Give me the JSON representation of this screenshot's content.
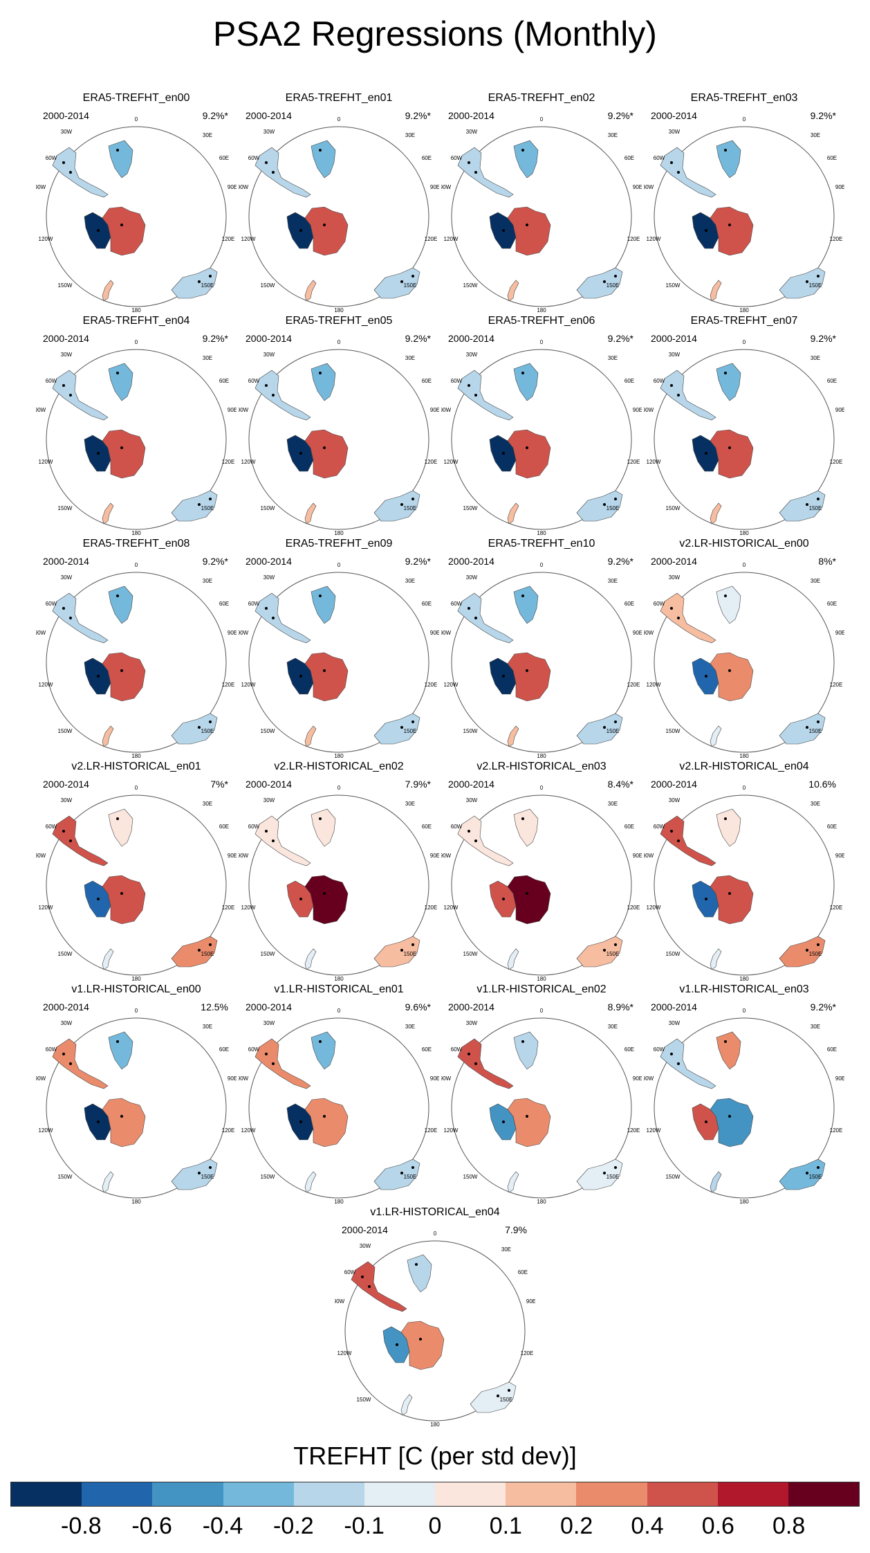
{
  "title": "PSA2 Regressions (Monthly)",
  "period": "2000-2014",
  "panels": [
    {
      "name": "ERA5-TREFHT_en00",
      "pct": "9.2%*",
      "scheme": "era5"
    },
    {
      "name": "ERA5-TREFHT_en01",
      "pct": "9.2%*",
      "scheme": "era5"
    },
    {
      "name": "ERA5-TREFHT_en02",
      "pct": "9.2%*",
      "scheme": "era5"
    },
    {
      "name": "ERA5-TREFHT_en03",
      "pct": "9.2%*",
      "scheme": "era5"
    },
    {
      "name": "ERA5-TREFHT_en04",
      "pct": "9.2%*",
      "scheme": "era5"
    },
    {
      "name": "ERA5-TREFHT_en05",
      "pct": "9.2%*",
      "scheme": "era5"
    },
    {
      "name": "ERA5-TREFHT_en06",
      "pct": "9.2%*",
      "scheme": "era5"
    },
    {
      "name": "ERA5-TREFHT_en07",
      "pct": "9.2%*",
      "scheme": "era5"
    },
    {
      "name": "ERA5-TREFHT_en08",
      "pct": "9.2%*",
      "scheme": "era5"
    },
    {
      "name": "ERA5-TREFHT_en09",
      "pct": "9.2%*",
      "scheme": "era5"
    },
    {
      "name": "ERA5-TREFHT_en10",
      "pct": "9.2%*",
      "scheme": "era5"
    },
    {
      "name": "v2.LR-HISTORICAL_en00",
      "pct": "8%*",
      "scheme": "v2a"
    },
    {
      "name": "v2.LR-HISTORICAL_en01",
      "pct": "7%*",
      "scheme": "v2b"
    },
    {
      "name": "v2.LR-HISTORICAL_en02",
      "pct": "7.9%*",
      "scheme": "v2c"
    },
    {
      "name": "v2.LR-HISTORICAL_en03",
      "pct": "8.4%*",
      "scheme": "v2c"
    },
    {
      "name": "v2.LR-HISTORICAL_en04",
      "pct": "10.6%",
      "scheme": "v2b"
    },
    {
      "name": "v1.LR-HISTORICAL_en00",
      "pct": "12.5%",
      "scheme": "v1a"
    },
    {
      "name": "v1.LR-HISTORICAL_en01",
      "pct": "9.6%*",
      "scheme": "v1a"
    },
    {
      "name": "v1.LR-HISTORICAL_en02",
      "pct": "8.9%*",
      "scheme": "v1b"
    },
    {
      "name": "v1.LR-HISTORICAL_en03",
      "pct": "9.2%*",
      "scheme": "v1c"
    },
    {
      "name": "v1.LR-HISTORICAL_en04",
      "pct": "7.9%",
      "scheme": "v1b"
    }
  ],
  "map_labels": {
    "lon": [
      "0",
      "30E",
      "60E",
      "90E",
      "120E",
      "150E",
      "180",
      "150W",
      "120W",
      "90W",
      "60W",
      "30W"
    ]
  },
  "colorbar": {
    "title": "TREFHT [C (per std dev)]",
    "colors": [
      "#053061",
      "#2166ac",
      "#4393c3",
      "#74b9dc",
      "#b7d6ea",
      "#e3eef5",
      "#fbe6dd",
      "#f7bda0",
      "#ea8c6c",
      "#d0534b",
      "#b2182b",
      "#67001f"
    ],
    "ticks": [
      "-0.8",
      "-0.6",
      "-0.4",
      "-0.2",
      "-0.1",
      "0",
      "0.1",
      "0.2",
      "0.4",
      "0.6",
      "0.8"
    ]
  }
}
